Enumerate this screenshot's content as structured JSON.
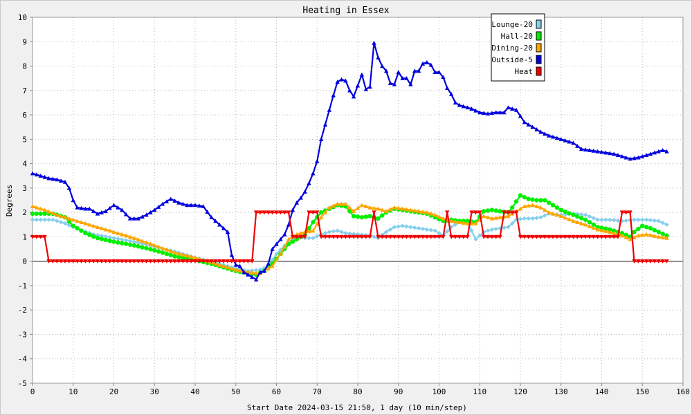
{
  "chart_data": {
    "type": "line",
    "title": "Heating in Essex",
    "xlabel": "Start Date 2024-03-15 21:50, 1 day (10 min/step)",
    "ylabel": "Degrees",
    "xlim": [
      0,
      160
    ],
    "ylim": [
      -5,
      10
    ],
    "xticks": [
      0,
      10,
      20,
      30,
      40,
      50,
      60,
      70,
      80,
      90,
      100,
      110,
      120,
      130,
      140,
      150,
      160
    ],
    "yticks": [
      -5,
      -4,
      -3,
      -2,
      -1,
      0,
      1,
      2,
      3,
      4,
      5,
      6,
      7,
      8,
      9,
      10
    ],
    "grid": true,
    "legend_position": "top-right",
    "series": [
      {
        "name": "Lounge-20",
        "color": "#87ceeb",
        "marker": "diamond",
        "points": [
          [
            0,
            1.7
          ],
          [
            5,
            1.7
          ],
          [
            8,
            1.55
          ],
          [
            10,
            1.4
          ],
          [
            15,
            1.1
          ],
          [
            20,
            0.95
          ],
          [
            25,
            0.8
          ],
          [
            30,
            0.6
          ],
          [
            35,
            0.4
          ],
          [
            40,
            0.15
          ],
          [
            45,
            -0.05
          ],
          [
            50,
            -0.3
          ],
          [
            53,
            -0.4
          ],
          [
            56,
            -0.35
          ],
          [
            58,
            -0.2
          ],
          [
            60,
            0.3
          ],
          [
            63,
            0.8
          ],
          [
            65,
            1.0
          ],
          [
            67,
            0.95
          ],
          [
            69,
            0.95
          ],
          [
            71,
            1.1
          ],
          [
            73,
            1.2
          ],
          [
            75,
            1.25
          ],
          [
            77,
            1.15
          ],
          [
            80,
            1.1
          ],
          [
            83,
            1.05
          ],
          [
            85,
            0.95
          ],
          [
            87,
            1.2
          ],
          [
            89,
            1.4
          ],
          [
            91,
            1.45
          ],
          [
            93,
            1.4
          ],
          [
            95,
            1.35
          ],
          [
            97,
            1.3
          ],
          [
            99,
            1.25
          ],
          [
            101,
            1.05
          ],
          [
            103,
            1.4
          ],
          [
            105,
            1.6
          ],
          [
            107,
            1.6
          ],
          [
            109,
            0.9
          ],
          [
            111,
            1.2
          ],
          [
            113,
            1.3
          ],
          [
            115,
            1.35
          ],
          [
            117,
            1.4
          ],
          [
            119,
            1.7
          ],
          [
            121,
            1.75
          ],
          [
            123,
            1.75
          ],
          [
            125,
            1.8
          ],
          [
            127,
            1.95
          ],
          [
            130,
            1.9
          ],
          [
            133,
            1.95
          ],
          [
            136,
            1.9
          ],
          [
            139,
            1.7
          ],
          [
            142,
            1.7
          ],
          [
            145,
            1.65
          ],
          [
            148,
            1.7
          ],
          [
            151,
            1.7
          ],
          [
            154,
            1.65
          ],
          [
            156,
            1.5
          ]
        ]
      },
      {
        "name": "Hall-20",
        "color": "#00ee00",
        "marker": "circle",
        "points": [
          [
            0,
            1.95
          ],
          [
            5,
            1.95
          ],
          [
            8,
            1.8
          ],
          [
            10,
            1.45
          ],
          [
            13,
            1.15
          ],
          [
            16,
            0.95
          ],
          [
            20,
            0.8
          ],
          [
            25,
            0.65
          ],
          [
            30,
            0.45
          ],
          [
            35,
            0.2
          ],
          [
            40,
            0.05
          ],
          [
            45,
            -0.15
          ],
          [
            50,
            -0.4
          ],
          [
            53,
            -0.5
          ],
          [
            55,
            -0.55
          ],
          [
            57,
            -0.4
          ],
          [
            59,
            -0.1
          ],
          [
            61,
            0.3
          ],
          [
            63,
            0.7
          ],
          [
            65,
            0.9
          ],
          [
            67,
            1.1
          ],
          [
            69,
            1.6
          ],
          [
            71,
            2.0
          ],
          [
            73,
            2.15
          ],
          [
            75,
            2.3
          ],
          [
            77,
            2.25
          ],
          [
            79,
            1.85
          ],
          [
            81,
            1.8
          ],
          [
            83,
            1.85
          ],
          [
            85,
            1.75
          ],
          [
            87,
            2.0
          ],
          [
            89,
            2.15
          ],
          [
            91,
            2.1
          ],
          [
            93,
            2.05
          ],
          [
            95,
            2.0
          ],
          [
            97,
            1.95
          ],
          [
            99,
            1.8
          ],
          [
            101,
            1.65
          ],
          [
            103,
            1.7
          ],
          [
            105,
            1.65
          ],
          [
            107,
            1.65
          ],
          [
            109,
            1.6
          ],
          [
            111,
            2.05
          ],
          [
            113,
            2.1
          ],
          [
            115,
            2.05
          ],
          [
            117,
            2.0
          ],
          [
            118,
            2.2
          ],
          [
            120,
            2.7
          ],
          [
            122,
            2.55
          ],
          [
            124,
            2.5
          ],
          [
            126,
            2.5
          ],
          [
            128,
            2.3
          ],
          [
            130,
            2.1
          ],
          [
            133,
            1.9
          ],
          [
            136,
            1.7
          ],
          [
            139,
            1.4
          ],
          [
            142,
            1.3
          ],
          [
            145,
            1.15
          ],
          [
            147,
            1.0
          ],
          [
            148,
            1.2
          ],
          [
            150,
            1.45
          ],
          [
            152,
            1.35
          ],
          [
            154,
            1.2
          ],
          [
            156,
            1.05
          ]
        ]
      },
      {
        "name": "Dining-20",
        "color": "#ffa500",
        "marker": "triangle",
        "points": [
          [
            0,
            2.25
          ],
          [
            3,
            2.1
          ],
          [
            6,
            1.9
          ],
          [
            10,
            1.7
          ],
          [
            15,
            1.45
          ],
          [
            20,
            1.2
          ],
          [
            25,
            0.95
          ],
          [
            30,
            0.65
          ],
          [
            35,
            0.35
          ],
          [
            40,
            0.15
          ],
          [
            45,
            -0.1
          ],
          [
            50,
            -0.35
          ],
          [
            53,
            -0.45
          ],
          [
            56,
            -0.5
          ],
          [
            59,
            -0.2
          ],
          [
            61,
            0.3
          ],
          [
            63,
            0.9
          ],
          [
            65,
            1.1
          ],
          [
            67,
            1.2
          ],
          [
            69,
            1.25
          ],
          [
            71,
            1.8
          ],
          [
            73,
            2.2
          ],
          [
            75,
            2.35
          ],
          [
            77,
            2.35
          ],
          [
            79,
            2.05
          ],
          [
            81,
            2.3
          ],
          [
            83,
            2.2
          ],
          [
            85,
            2.15
          ],
          [
            87,
            2.05
          ],
          [
            89,
            2.2
          ],
          [
            91,
            2.15
          ],
          [
            93,
            2.1
          ],
          [
            95,
            2.05
          ],
          [
            97,
            2.0
          ],
          [
            99,
            1.9
          ],
          [
            101,
            1.75
          ],
          [
            103,
            1.65
          ],
          [
            105,
            1.6
          ],
          [
            107,
            1.55
          ],
          [
            109,
            1.55
          ],
          [
            111,
            1.85
          ],
          [
            113,
            1.75
          ],
          [
            115,
            1.8
          ],
          [
            117,
            1.85
          ],
          [
            119,
            2.05
          ],
          [
            121,
            2.25
          ],
          [
            123,
            2.3
          ],
          [
            125,
            2.2
          ],
          [
            127,
            2.0
          ],
          [
            130,
            1.85
          ],
          [
            133,
            1.65
          ],
          [
            136,
            1.5
          ],
          [
            139,
            1.3
          ],
          [
            142,
            1.2
          ],
          [
            145,
            1.05
          ],
          [
            147,
            0.9
          ],
          [
            149,
            1.05
          ],
          [
            151,
            1.1
          ],
          [
            154,
            1.0
          ],
          [
            156,
            0.95
          ]
        ]
      },
      {
        "name": "Outside-5",
        "color": "#0000dd",
        "marker": "triangle",
        "points": [
          [
            0,
            3.6
          ],
          [
            2,
            3.5
          ],
          [
            4,
            3.4
          ],
          [
            6,
            3.35
          ],
          [
            8,
            3.25
          ],
          [
            9,
            3.0
          ],
          [
            10,
            2.5
          ],
          [
            11,
            2.2
          ],
          [
            13,
            2.15
          ],
          [
            14,
            2.15
          ],
          [
            16,
            1.95
          ],
          [
            18,
            2.05
          ],
          [
            20,
            2.3
          ],
          [
            22,
            2.1
          ],
          [
            24,
            1.75
          ],
          [
            26,
            1.75
          ],
          [
            28,
            1.9
          ],
          [
            30,
            2.1
          ],
          [
            32,
            2.35
          ],
          [
            34,
            2.55
          ],
          [
            36,
            2.4
          ],
          [
            38,
            2.3
          ],
          [
            40,
            2.3
          ],
          [
            42,
            2.25
          ],
          [
            44,
            1.8
          ],
          [
            46,
            1.5
          ],
          [
            48,
            1.2
          ],
          [
            49,
            0.25
          ],
          [
            50,
            -0.15
          ],
          [
            51,
            -0.2
          ],
          [
            52,
            -0.45
          ],
          [
            53,
            -0.55
          ],
          [
            54,
            -0.65
          ],
          [
            55,
            -0.75
          ],
          [
            56,
            -0.45
          ],
          [
            57,
            -0.4
          ],
          [
            58,
            -0.1
          ],
          [
            59,
            0.5
          ],
          [
            60,
            0.7
          ],
          [
            62,
            1.1
          ],
          [
            63,
            1.5
          ],
          [
            64,
            2.1
          ],
          [
            65,
            2.4
          ],
          [
            66,
            2.6
          ],
          [
            67,
            2.85
          ],
          [
            68,
            3.2
          ],
          [
            69,
            3.6
          ],
          [
            70,
            4.1
          ],
          [
            71,
            5.0
          ],
          [
            72,
            5.6
          ],
          [
            73,
            6.2
          ],
          [
            74,
            6.8
          ],
          [
            75,
            7.35
          ],
          [
            76,
            7.45
          ],
          [
            77,
            7.4
          ],
          [
            78,
            7.0
          ],
          [
            79,
            6.75
          ],
          [
            80,
            7.2
          ],
          [
            81,
            7.65
          ],
          [
            82,
            7.05
          ],
          [
            83,
            7.15
          ],
          [
            84,
            8.95
          ],
          [
            85,
            8.35
          ],
          [
            86,
            8.0
          ],
          [
            87,
            7.8
          ],
          [
            88,
            7.3
          ],
          [
            89,
            7.25
          ],
          [
            90,
            7.75
          ],
          [
            91,
            7.5
          ],
          [
            92,
            7.5
          ],
          [
            93,
            7.25
          ],
          [
            94,
            7.8
          ],
          [
            95,
            7.8
          ],
          [
            96,
            8.1
          ],
          [
            97,
            8.15
          ],
          [
            98,
            8.05
          ],
          [
            99,
            7.75
          ],
          [
            100,
            7.75
          ],
          [
            101,
            7.55
          ],
          [
            102,
            7.1
          ],
          [
            103,
            6.85
          ],
          [
            104,
            6.5
          ],
          [
            105,
            6.4
          ],
          [
            106,
            6.35
          ],
          [
            108,
            6.25
          ],
          [
            110,
            6.1
          ],
          [
            112,
            6.05
          ],
          [
            114,
            6.1
          ],
          [
            116,
            6.1
          ],
          [
            117,
            6.3
          ],
          [
            119,
            6.2
          ],
          [
            120,
            5.95
          ],
          [
            121,
            5.7
          ],
          [
            123,
            5.5
          ],
          [
            125,
            5.3
          ],
          [
            127,
            5.15
          ],
          [
            129,
            5.05
          ],
          [
            131,
            4.95
          ],
          [
            133,
            4.85
          ],
          [
            135,
            4.6
          ],
          [
            137,
            4.55
          ],
          [
            139,
            4.5
          ],
          [
            141,
            4.45
          ],
          [
            143,
            4.4
          ],
          [
            145,
            4.3
          ],
          [
            147,
            4.2
          ],
          [
            149,
            4.25
          ],
          [
            151,
            4.35
          ],
          [
            153,
            4.45
          ],
          [
            155,
            4.55
          ],
          [
            156,
            4.5
          ]
        ]
      },
      {
        "name": "Heat",
        "color": "#ee0000",
        "marker": "triangle-down",
        "points": [
          [
            0,
            1
          ],
          [
            3,
            1
          ],
          [
            4,
            0
          ],
          [
            54,
            0
          ],
          [
            55,
            2
          ],
          [
            63,
            2
          ],
          [
            64,
            1
          ],
          [
            67,
            1
          ],
          [
            68,
            2
          ],
          [
            70,
            2
          ],
          [
            71,
            1
          ],
          [
            83,
            1
          ],
          [
            84,
            2
          ],
          [
            85,
            1
          ],
          [
            101,
            1
          ],
          [
            102,
            2
          ],
          [
            103,
            1
          ],
          [
            107,
            1
          ],
          [
            108,
            2
          ],
          [
            110,
            2
          ],
          [
            111,
            1
          ],
          [
            115,
            1
          ],
          [
            116,
            2
          ],
          [
            119,
            2
          ],
          [
            120,
            1
          ],
          [
            144,
            1
          ],
          [
            145,
            2
          ],
          [
            147,
            2
          ],
          [
            148,
            0
          ],
          [
            156,
            0
          ]
        ]
      }
    ]
  }
}
